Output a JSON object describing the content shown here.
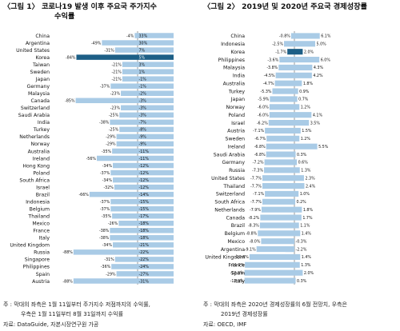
{
  "chart_data": [
    {
      "type": "bar",
      "orientation": "horizontal",
      "title": "〈그림 1〉 코로나19 발생 이후 주요국 주가지수 수익률",
      "categories": [
        "China",
        "Argentina",
        "United States",
        "Korea",
        "Taiwan",
        "Sweden",
        "Japan",
        "Germany",
        "Malaysia",
        "Canada",
        "Switzerland",
        "Saudi Arabia",
        "India",
        "Turkey",
        "Netherlands",
        "Norway",
        "Australia",
        "Ireland",
        "Hong Kong",
        "Poland",
        "South Africa",
        "Israel",
        "Brazil",
        "Indonesia",
        "Belgium",
        "Thailand",
        "Mexico",
        "France",
        "Italy",
        "United Kingdom",
        "Russia",
        "Singapore",
        "Philippines",
        "Spain",
        "Austria"
      ],
      "values": [
        -4,
        -49,
        -31,
        -84,
        -21,
        -21,
        -21,
        -37,
        -23,
        -85,
        -23,
        -25,
        -38,
        -25,
        -29,
        -29,
        -35,
        -56,
        -34,
        -37,
        -34,
        -32,
        -66,
        -37,
        -37,
        -35,
        -26,
        -38,
        -38,
        -34,
        -88,
        -31,
        -36,
        -29,
        -88
      ],
      "right_labels": [
        "33%",
        "30%",
        "7%",
        "5%",
        "3%",
        "1%",
        "-1%",
        "-1%",
        "-2%",
        "-3%",
        "-3%",
        "-3%",
        "-7%",
        "-8%",
        "-9%",
        "-9%",
        "-11%",
        "-11%",
        "-12%",
        "-12%",
        "-12%",
        "-12%",
        "-14%",
        "-15%",
        "-15%",
        "-17%",
        "-18%",
        "-18%",
        "-18%",
        "-21%",
        "-22%",
        "-22%",
        "-24%",
        "-27%",
        "-31%"
      ],
      "highlight": "Korea"
    },
    {
      "type": "bar",
      "orientation": "horizontal",
      "title": "〈그림 2〉 2019년 및 2020년 주요국 경제성장률",
      "categories": [
        "China",
        "Indonesia",
        "Korea",
        "Philippines",
        "Malaysia",
        "India",
        "Australia",
        "Turkey",
        "Japan",
        "Norway",
        "Poland",
        "Israel",
        "Austria",
        "Sweden",
        "Ireland",
        "Saudi Arabia",
        "Germany",
        "Russia",
        "United States",
        "Thailand",
        "Switzerland",
        "South Africa",
        "Netherlands",
        "Canada",
        "Brazil",
        "Belgium",
        "Mexico",
        "Argentina",
        "United Kingdom",
        "France",
        "Spain",
        "Italy"
      ],
      "values_2020": [
        -0.8,
        -2.5,
        -1.7,
        -3.6,
        -3.8,
        -4.5,
        -4.7,
        -5.3,
        -5.9,
        -6.0,
        -6.0,
        -6.2,
        -7.1,
        -6.7,
        -6.8,
        -6.8,
        -7.2,
        -7.3,
        -7.7,
        -7.7,
        -7.1,
        -7.7,
        -7.9,
        -8.2,
        -8.3,
        -8.8,
        -8.0,
        -9.1,
        -10.8,
        -11.9,
        -12.0,
        -12.0
      ],
      "values_2019": [
        6.1,
        5.0,
        2.0,
        6.0,
        4.3,
        4.2,
        1.8,
        0.9,
        0.7,
        1.2,
        4.1,
        3.5,
        1.5,
        1.2,
        5.5,
        0.3,
        0.6,
        1.3,
        2.3,
        2.4,
        1.0,
        0.2,
        1.8,
        1.7,
        1.1,
        1.4,
        -0.3,
        -2.2,
        1.4,
        1.3,
        2.0,
        0.3
      ],
      "highlight": "Korea"
    }
  ],
  "titles": {
    "fig1_line1": "〈그림 1〉 코로나19 발생 이후 주요국 주가지수",
    "fig1_line2": "수익률",
    "fig2_line1": "〈그림 2〉 2019년 및 2020년 주요국 경제성장률"
  },
  "notes": {
    "fig1_note1": "주 : 막대의 좌측은 1월 11일부터 주가지수 저점까지의 수익률,",
    "fig1_note2": "우측은 1월 11일부터 8월 31일까지 수익률",
    "fig1_source": "자료: DataGuide, 자본시장연구원 가공",
    "fig2_note1": "주 : 막대의 좌측은 2020년 경제성장률의 6월 전망치, 우측은",
    "fig2_note2": "2019년 경제성장률",
    "fig2_source": "자료: OECD, IMF"
  },
  "colors": {
    "bar": "#a9cbe6",
    "highlight_bar": "#1d5f86",
    "text": "#111111"
  }
}
